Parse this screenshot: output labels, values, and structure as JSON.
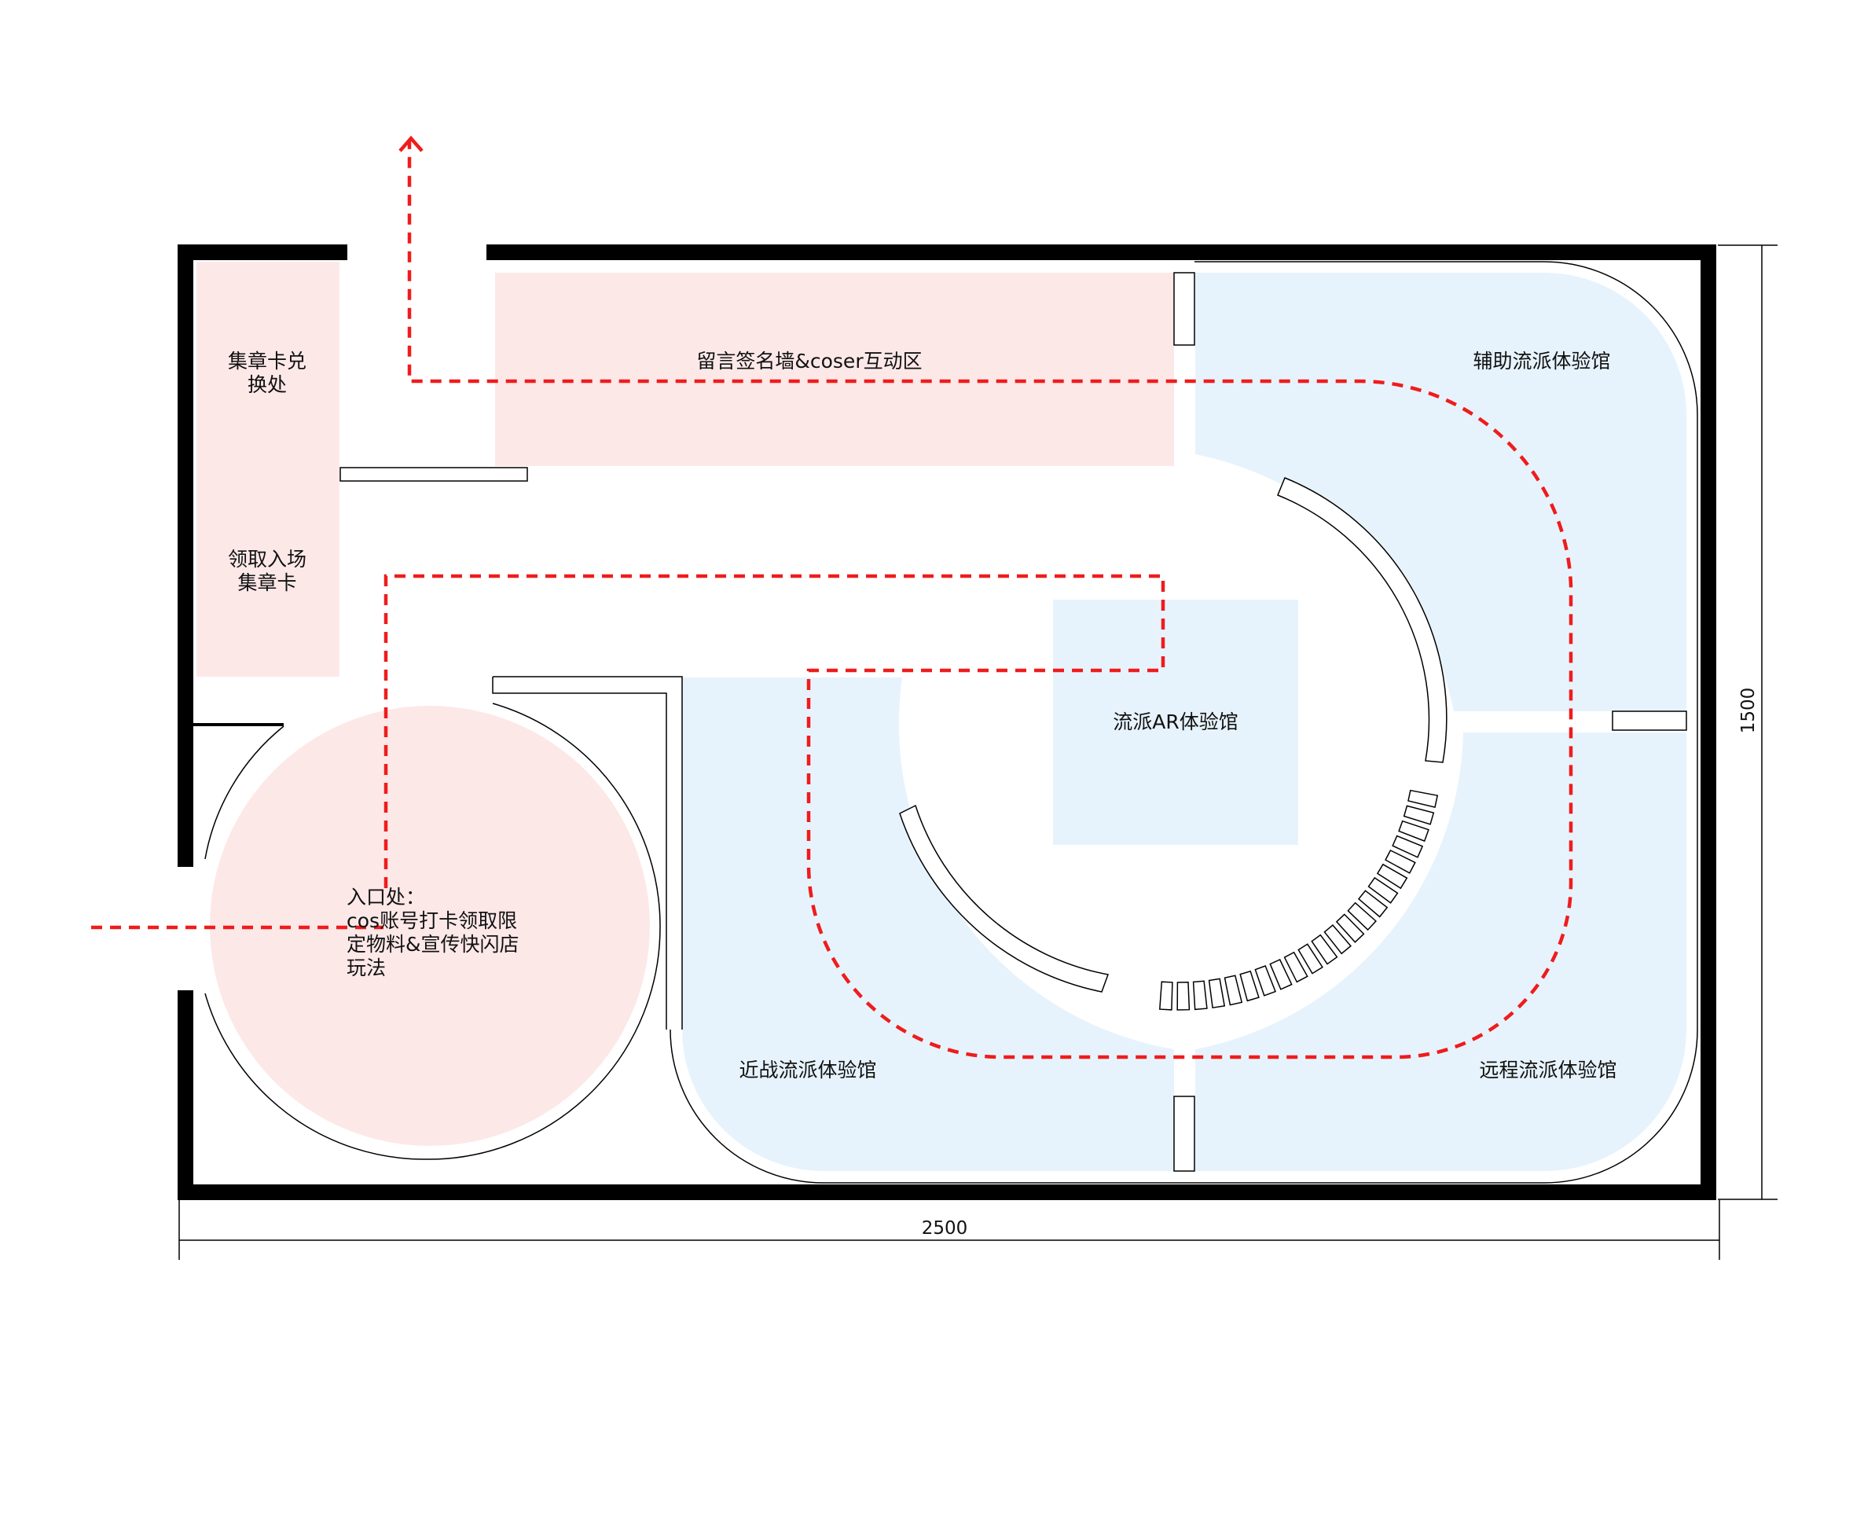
{
  "colors": {
    "pink_zone": "#fde8e8",
    "blue_zone": "#e7f3fc",
    "wall": "#000000",
    "route": "#ef1c1c"
  },
  "zones": {
    "stamp_exchange": [
      "集章卡兑",
      "换处"
    ],
    "get_card": [
      "领取入场",
      "集章卡"
    ],
    "message_wall": "留言签名墙&coser互动区",
    "support_hall": "辅助流派体验馆",
    "ar_hall": "流派AR体验馆",
    "melee_hall": "近战流派体验馆",
    "ranged_hall": "远程流派体验馆",
    "entrance": [
      "入口处：",
      "cos账号打卡领取限",
      "定物料&宣传快闪店",
      "玩法"
    ]
  },
  "dimensions": {
    "width": "2500",
    "height": "1500"
  }
}
